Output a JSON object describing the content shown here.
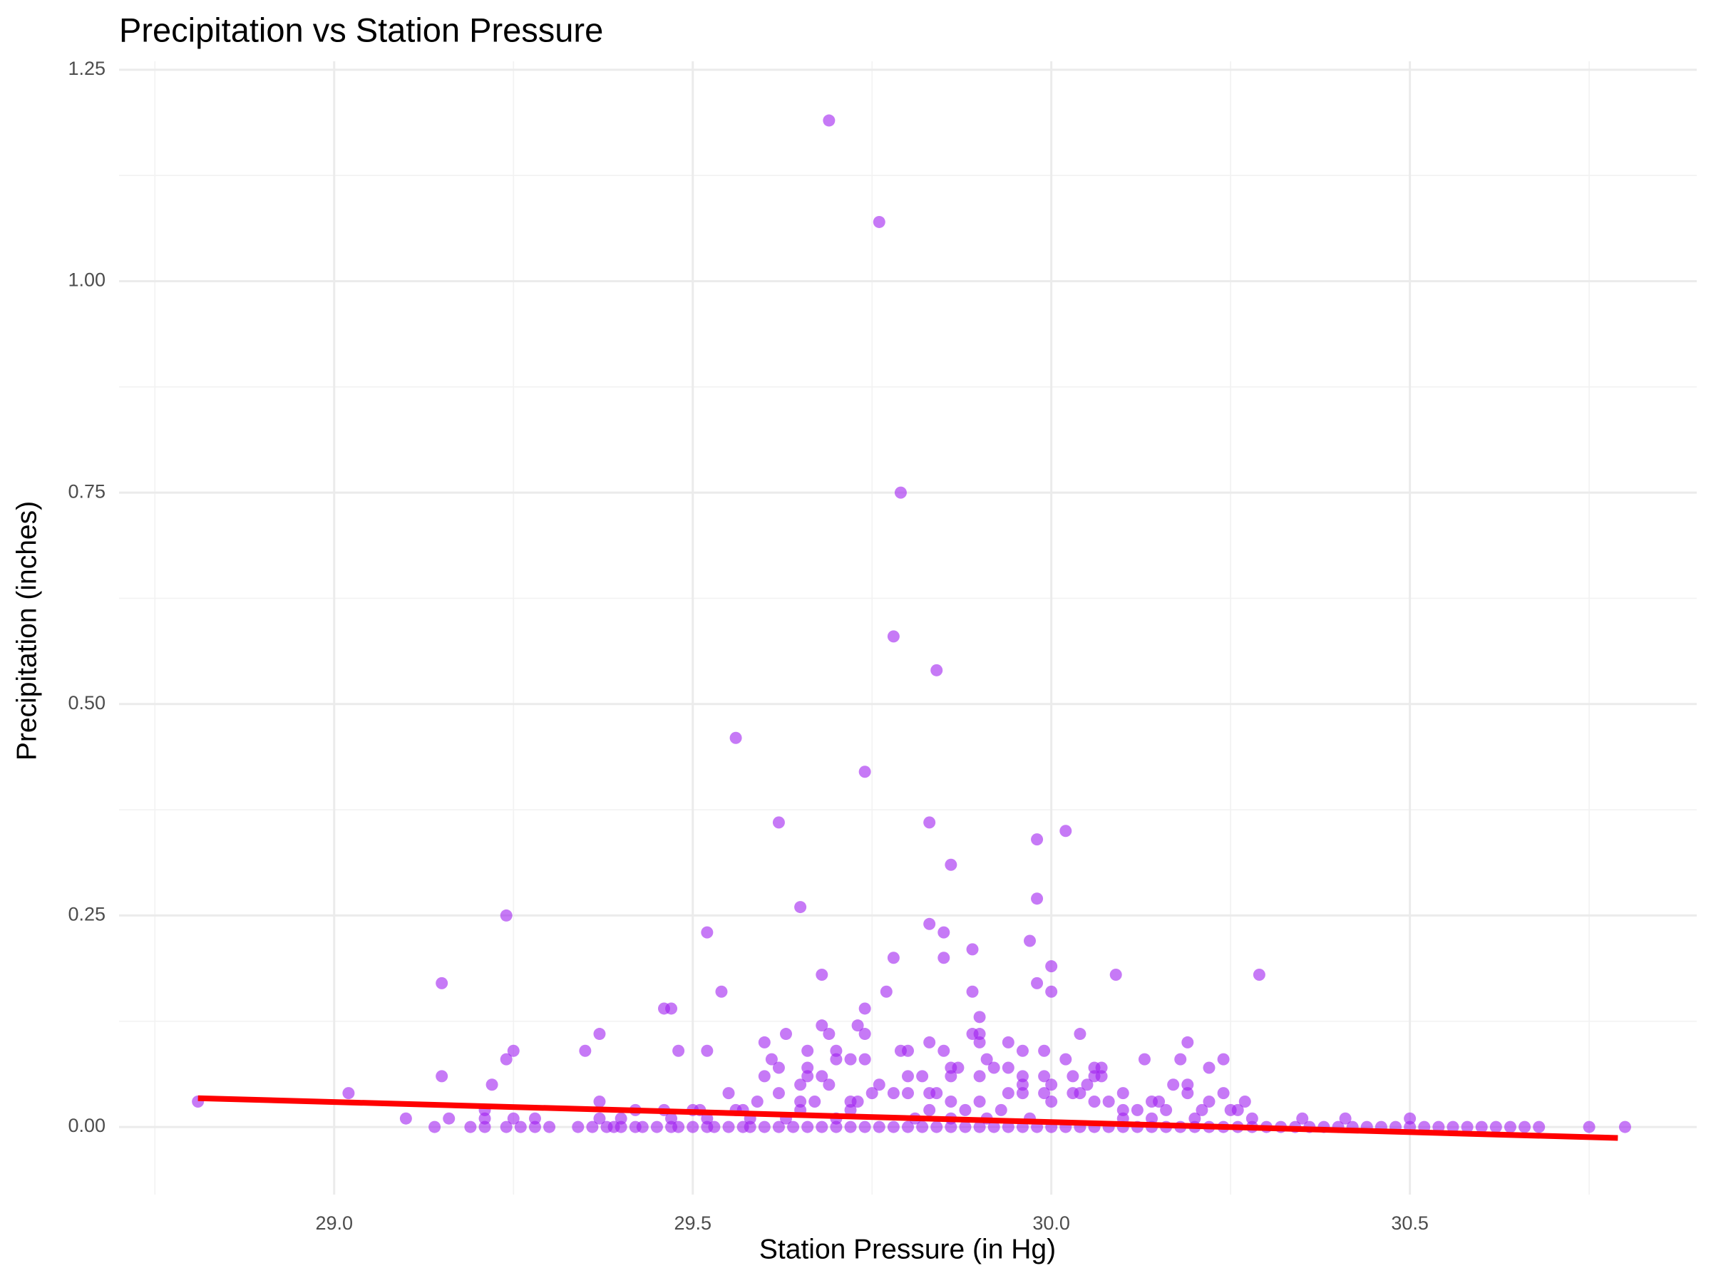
{
  "chart_data": {
    "type": "scatter",
    "title": "Precipitation vs Station Pressure",
    "x_label": "Station Pressure (in Hg)",
    "y_label": "Precipitation (inches)",
    "xlim": [
      28.7,
      30.9
    ],
    "ylim": [
      -0.08,
      1.26
    ],
    "xticks": [
      {
        "value": 29.0,
        "label": "29.0"
      },
      {
        "value": 29.5,
        "label": "29.5"
      },
      {
        "value": 30.0,
        "label": "30.0"
      },
      {
        "value": 30.5,
        "label": "30.5"
      }
    ],
    "yticks": [
      {
        "value": 0,
        "label": "0.00"
      },
      {
        "value": 0.25,
        "label": "0.25"
      },
      {
        "value": 0.5,
        "label": "0.50"
      },
      {
        "value": 0.75,
        "label": "0.75"
      },
      {
        "value": 1.0,
        "label": "1.00"
      },
      {
        "value": 1.25,
        "label": "1.25"
      }
    ],
    "x_minor_ticks": [
      28.75,
      29.25,
      29.75,
      30.25,
      30.75
    ],
    "y_minor_ticks": [
      0.125,
      0.375,
      0.625,
      0.875,
      1.125
    ],
    "grid": true,
    "color": "#a020f0",
    "x": [
      29.69,
      29.76,
      29.79,
      29.78,
      29.84,
      29.56,
      29.74,
      29.62,
      29.83,
      30.02,
      29.98,
      29.86,
      29.98,
      29.65,
      29.24,
      29.83,
      29.85,
      29.52,
      29.97,
      29.89,
      29.78,
      29.85,
      30.0,
      29.68,
      30.09,
      30.29,
      29.15,
      29.98,
      29.77,
      29.54,
      29.89,
      30.0,
      29.46,
      29.47,
      29.74,
      29.9,
      29.68,
      29.73,
      29.37,
      29.63,
      29.69,
      29.74,
      29.89,
      29.9,
      30.04,
      29.6,
      29.83,
      29.9,
      29.94,
      30.19,
      29.25,
      29.35,
      29.48,
      29.52,
      29.66,
      29.7,
      29.79,
      29.8,
      29.85,
      29.96,
      29.99,
      29.24,
      29.61,
      29.7,
      29.72,
      29.74,
      29.91,
      30.02,
      30.13,
      30.18,
      30.24,
      29.62,
      29.66,
      29.86,
      29.87,
      29.92,
      29.94,
      30.06,
      30.07,
      30.22,
      29.15,
      29.6,
      29.66,
      29.68,
      29.8,
      29.82,
      29.86,
      29.9,
      29.96,
      29.99,
      30.03,
      30.06,
      30.07,
      29.22,
      29.65,
      29.69,
      29.76,
      29.96,
      30.0,
      30.05,
      30.17,
      30.19,
      29.02,
      29.55,
      29.62,
      29.75,
      29.78,
      29.8,
      29.83,
      29.84,
      29.94,
      29.96,
      29.99,
      30.03,
      30.04,
      30.1,
      30.19,
      30.24,
      28.81,
      29.37,
      29.59,
      29.65,
      29.67,
      29.72,
      29.73,
      29.86,
      29.9,
      30.0,
      30.06,
      30.08,
      30.14,
      30.15,
      30.22,
      30.27,
      29.21,
      29.42,
      29.46,
      29.5,
      29.51,
      29.56,
      29.57,
      29.65,
      29.72,
      29.83,
      29.88,
      29.93,
      30.1,
      30.12,
      30.16,
      30.21,
      30.25,
      30.26,
      29.1,
      29.16,
      29.21,
      29.25,
      29.28,
      29.37,
      29.4,
      29.47,
      29.52,
      29.58,
      29.63,
      29.7,
      29.81,
      29.86,
      29.91,
      29.97,
      30.1,
      30.14,
      30.2,
      30.28,
      30.35,
      30.41,
      30.5,
      29.14,
      29.19,
      29.21,
      29.24,
      29.26,
      29.28,
      29.3,
      29.34,
      29.36,
      29.38,
      29.39,
      29.4,
      29.42,
      29.43,
      29.45,
      29.47,
      29.48,
      29.5,
      29.52,
      29.53,
      29.55,
      29.57,
      29.58,
      29.6,
      29.62,
      29.64,
      29.66,
      29.68,
      29.7,
      29.72,
      29.74,
      29.76,
      29.78,
      29.8,
      29.82,
      29.84,
      29.86,
      29.88,
      29.9,
      29.92,
      29.94,
      29.96,
      29.98,
      30.0,
      30.02,
      30.04,
      30.06,
      30.08,
      30.1,
      30.12,
      30.14,
      30.16,
      30.18,
      30.2,
      30.22,
      30.24,
      30.26,
      30.28,
      30.3,
      30.32,
      30.34,
      30.36,
      30.38,
      30.4,
      30.42,
      30.44,
      30.46,
      30.48,
      30.5,
      30.52,
      30.54,
      30.56,
      30.58,
      30.6,
      30.62,
      30.64,
      30.66,
      30.68,
      30.75,
      30.8
    ],
    "values": [
      1.19,
      1.07,
      0.75,
      0.58,
      0.54,
      0.46,
      0.42,
      0.36,
      0.36,
      0.35,
      0.34,
      0.31,
      0.27,
      0.26,
      0.25,
      0.24,
      0.23,
      0.23,
      0.22,
      0.21,
      0.2,
      0.2,
      0.19,
      0.18,
      0.18,
      0.18,
      0.17,
      0.17,
      0.16,
      0.16,
      0.16,
      0.16,
      0.14,
      0.14,
      0.14,
      0.13,
      0.12,
      0.12,
      0.11,
      0.11,
      0.11,
      0.11,
      0.11,
      0.11,
      0.11,
      0.1,
      0.1,
      0.1,
      0.1,
      0.1,
      0.09,
      0.09,
      0.09,
      0.09,
      0.09,
      0.09,
      0.09,
      0.09,
      0.09,
      0.09,
      0.09,
      0.08,
      0.08,
      0.08,
      0.08,
      0.08,
      0.08,
      0.08,
      0.08,
      0.08,
      0.08,
      0.07,
      0.07,
      0.07,
      0.07,
      0.07,
      0.07,
      0.07,
      0.07,
      0.07,
      0.06,
      0.06,
      0.06,
      0.06,
      0.06,
      0.06,
      0.06,
      0.06,
      0.06,
      0.06,
      0.06,
      0.06,
      0.06,
      0.05,
      0.05,
      0.05,
      0.05,
      0.05,
      0.05,
      0.05,
      0.05,
      0.05,
      0.04,
      0.04,
      0.04,
      0.04,
      0.04,
      0.04,
      0.04,
      0.04,
      0.04,
      0.04,
      0.04,
      0.04,
      0.04,
      0.04,
      0.04,
      0.04,
      0.03,
      0.03,
      0.03,
      0.03,
      0.03,
      0.03,
      0.03,
      0.03,
      0.03,
      0.03,
      0.03,
      0.03,
      0.03,
      0.03,
      0.03,
      0.03,
      0.02,
      0.02,
      0.02,
      0.02,
      0.02,
      0.02,
      0.02,
      0.02,
      0.02,
      0.02,
      0.02,
      0.02,
      0.02,
      0.02,
      0.02,
      0.02,
      0.02,
      0.02,
      0.01,
      0.01,
      0.01,
      0.01,
      0.01,
      0.01,
      0.01,
      0.01,
      0.01,
      0.01,
      0.01,
      0.01,
      0.01,
      0.01,
      0.01,
      0.01,
      0.01,
      0.01,
      0.01,
      0.01,
      0.01,
      0.01,
      0.01,
      0,
      0,
      0,
      0,
      0,
      0,
      0,
      0,
      0,
      0,
      0,
      0,
      0,
      0,
      0,
      0,
      0,
      0,
      0,
      0,
      0,
      0,
      0,
      0,
      0,
      0,
      0,
      0,
      0,
      0,
      0,
      0,
      0,
      0,
      0,
      0,
      0,
      0,
      0,
      0,
      0,
      0,
      0,
      0,
      0,
      0,
      0,
      0,
      0,
      0,
      0,
      0,
      0,
      0,
      0,
      0,
      0,
      0,
      0,
      0,
      0,
      0,
      0,
      0,
      0,
      0,
      0,
      0,
      0,
      0,
      0,
      0,
      0,
      0,
      0,
      0,
      0,
      0,
      0,
      0
    ],
    "trend_line": {
      "x": [
        28.81,
        30.79
      ],
      "values": [
        0.034,
        -0.013
      ],
      "color": "#ff0000"
    }
  }
}
